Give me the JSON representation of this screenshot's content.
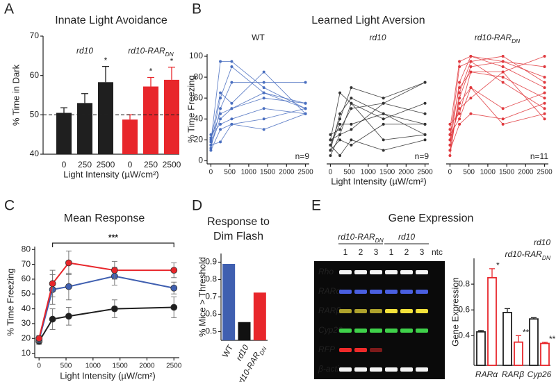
{
  "chart_data": [
    {
      "type": "bar",
      "panel": "A",
      "title": "Innate Light Avoidance",
      "y_label": "% Time in Dark",
      "x_label": "Light Intensity (µW/cm²)",
      "ylim": [
        40,
        70
      ],
      "yticks": [
        40,
        50,
        60,
        70
      ],
      "reference_line": 50,
      "categories": [
        "0",
        "250",
        "2500"
      ],
      "series": [
        {
          "name": "rd10",
          "color": "#1f1f1f",
          "values": [
            50.5,
            53,
            58.3
          ],
          "errors": [
            1.3,
            2.4,
            4
          ],
          "annotations": [
            null,
            null,
            "*"
          ]
        },
        {
          "name": "rd10-RAR",
          "name_sub": "DN",
          "color": "#e8262b",
          "values": [
            48.8,
            57.2,
            58.9
          ],
          "errors": [
            1.2,
            2.3,
            3.2
          ],
          "annotations": [
            null,
            "*",
            "*"
          ]
        }
      ]
    },
    {
      "type": "line",
      "panel": "B",
      "title": "Learned Light Aversion",
      "y_label": "% Time Freezing",
      "x_label": "Light Intensity (µW/cm²)",
      "ylim": [
        -3,
        102
      ],
      "yticks": [
        0,
        20,
        40,
        60,
        80,
        100
      ],
      "xlim": [
        -100,
        2600
      ],
      "xticks": [
        0,
        500,
        1000,
        1500,
        2000,
        2500
      ],
      "x": [
        0,
        250,
        550,
        1400,
        2500
      ],
      "groups": [
        {
          "name": "WT",
          "color": "#4a6fc0",
          "n_label": "n=9",
          "series": [
            {
              "values": [
                18,
                95,
                95,
                70,
                50
              ]
            },
            {
              "values": [
                20,
                65,
                55,
                85,
                45
              ]
            },
            {
              "values": [
                15,
                60,
                90,
                65,
                55
              ]
            },
            {
              "values": [
                12,
                50,
                75,
                75,
                75
              ]
            },
            {
              "values": [
                22,
                45,
                50,
                65,
                50
              ]
            },
            {
              "values": [
                15,
                40,
                50,
                60,
                55
              ]
            },
            {
              "values": [
                25,
                35,
                40,
                50,
                45
              ]
            },
            {
              "values": [
                10,
                30,
                35,
                40,
                50
              ]
            },
            {
              "values": [
                15,
                18,
                35,
                30,
                45
              ]
            }
          ]
        },
        {
          "name": "rd10",
          "color": "#333333",
          "n_label": "n=9",
          "series": [
            {
              "values": [
                15,
                40,
                70,
                60,
                75
              ]
            },
            {
              "values": [
                20,
                65,
                55,
                40,
                55
              ]
            },
            {
              "values": [
                10,
                45,
                60,
                45,
                35
              ]
            },
            {
              "values": [
                25,
                30,
                50,
                55,
                45
              ]
            },
            {
              "values": [
                15,
                35,
                35,
                45,
                25
              ]
            },
            {
              "values": [
                20,
                25,
                30,
                55,
                75
              ]
            },
            {
              "values": [
                10,
                20,
                15,
                35,
                35
              ]
            },
            {
              "values": [
                5,
                25,
                55,
                20,
                25
              ]
            },
            {
              "values": [
                15,
                5,
                20,
                10,
                20
              ]
            }
          ]
        },
        {
          "name": "rd10-RAR",
          "name_sub": "DN",
          "color": "#e0393e",
          "n_label": "n=11",
          "series": [
            {
              "values": [
                30,
                95,
                100,
                95,
                90
              ]
            },
            {
              "values": [
                20,
                90,
                95,
                100,
                75
              ]
            },
            {
              "values": [
                15,
                75,
                100,
                90,
                70
              ]
            },
            {
              "values": [
                25,
                70,
                85,
                85,
                100
              ]
            },
            {
              "values": [
                10,
                60,
                90,
                95,
                80
              ]
            },
            {
              "values": [
                35,
                45,
                85,
                80,
                60
              ]
            },
            {
              "values": [
                20,
                50,
                60,
                85,
                40
              ]
            },
            {
              "values": [
                5,
                65,
                95,
                75,
                50
              ]
            },
            {
              "values": [
                15,
                55,
                70,
                50,
                65
              ]
            },
            {
              "values": [
                10,
                35,
                45,
                40,
                55
              ]
            },
            {
              "values": [
                25,
                40,
                70,
                35,
                45
              ]
            }
          ]
        }
      ]
    },
    {
      "type": "line",
      "panel": "C",
      "title": "Mean Response",
      "y_label": "% Time Freezing",
      "x_label": "Light Intensity (µW/cm²)",
      "ylim": [
        7,
        82
      ],
      "yticks": [
        10,
        20,
        30,
        40,
        50,
        60,
        70,
        80
      ],
      "xlim": [
        -80,
        2600
      ],
      "xticks": [
        0,
        500,
        1000,
        1500,
        2000,
        2500
      ],
      "x": [
        0,
        250,
        550,
        1400,
        2500
      ],
      "annotation": "***",
      "series": [
        {
          "color": "#1f1f1f",
          "values": [
            18,
            33,
            35,
            40,
            41
          ],
          "errors": [
            2,
            7,
            6,
            6,
            7
          ]
        },
        {
          "color": "#3f5fb0",
          "values": [
            19,
            53,
            55,
            62,
            54
          ],
          "errors": [
            2,
            10,
            9,
            6,
            4
          ]
        },
        {
          "color": "#e8262b",
          "values": [
            20,
            57,
            71,
            66,
            66
          ],
          "errors": [
            2,
            9,
            8,
            6,
            5
          ]
        }
      ]
    },
    {
      "type": "bar",
      "panel": "D",
      "title_lines": [
        "Response to",
        "Dim Flash"
      ],
      "y_label": "% Mice > Threshold",
      "ylim": [
        0.45,
        0.95
      ],
      "yticks": [
        0.5,
        0.6,
        0.7,
        0.8,
        0.9
      ],
      "categories": [
        "WT",
        "rd10",
        "rd10-RAR"
      ],
      "category_subscripts": [
        null,
        null,
        "DN"
      ],
      "colors": [
        "#3f5fb0",
        "#111111",
        "#e8262b"
      ],
      "values": [
        0.89,
        0.555,
        0.725
      ]
    },
    {
      "type": "bar",
      "style": "open",
      "y_label": "Gene Expression",
      "ylim": [
        0.17,
        1.0
      ],
      "yticks": [
        0.4,
        0.6,
        0.8
      ],
      "categories": [
        "RARα",
        "RARβ",
        "Cyp26"
      ],
      "series": [
        {
          "name": "rd10",
          "color": "#1f1f1f",
          "values": [
            0.43,
            0.58,
            0.53
          ],
          "errors": [
            0.01,
            0.03,
            0.01
          ]
        },
        {
          "name": "rd10-RAR",
          "name_sub": "DN",
          "color": "#e8262b",
          "values": [
            0.85,
            0.35,
            0.34
          ],
          "errors": [
            0.07,
            0.05,
            0.01
          ],
          "annotations": [
            "*",
            "**",
            "**"
          ]
        }
      ]
    }
  ],
  "gel": {
    "panel": "E",
    "title": "Gene Expression",
    "groups": [
      {
        "label": "rd10-RAR",
        "label_sub": "DN"
      },
      {
        "label": "rd10"
      }
    ],
    "lanes": [
      "1",
      "2",
      "3",
      "1",
      "2",
      "3",
      "ntc"
    ],
    "genes": [
      "Rho",
      "RARα",
      "RARβ",
      "Cyp26",
      "RFP",
      "β-actin"
    ]
  }
}
